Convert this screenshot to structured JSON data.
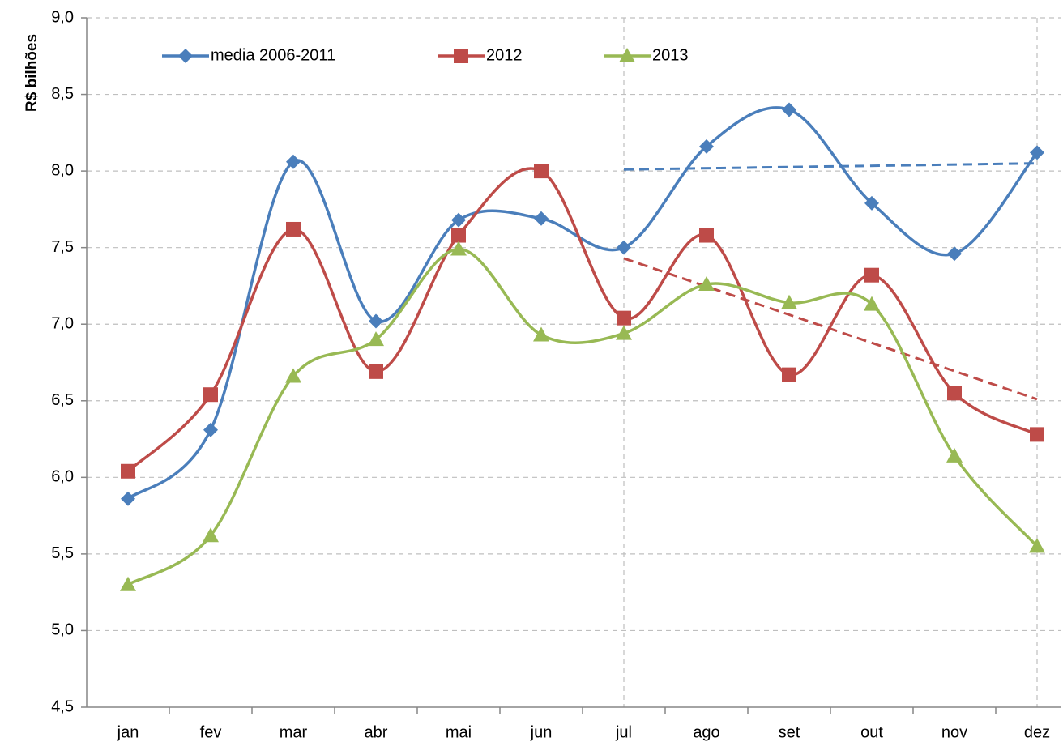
{
  "chart_data": {
    "type": "line",
    "y_label": "R$ bilhões",
    "categories": [
      "jan",
      "fev",
      "mar",
      "abr",
      "mai",
      "jun",
      "jul",
      "ago",
      "set",
      "out",
      "nov",
      "dez"
    ],
    "series": [
      {
        "name": "media 2006-2011",
        "color": "#4a7ebb",
        "marker": "diamond",
        "values": [
          5.86,
          6.31,
          8.06,
          7.02,
          7.68,
          7.69,
          7.5,
          8.16,
          8.4,
          7.79,
          7.46,
          8.12
        ]
      },
      {
        "name": "2012",
        "color": "#be4b48",
        "marker": "square",
        "values": [
          6.04,
          6.54,
          7.62,
          6.69,
          7.58,
          8.0,
          7.04,
          7.58,
          6.67,
          7.32,
          6.55,
          6.28
        ]
      },
      {
        "name": "2013",
        "color": "#98b954",
        "marker": "triangle",
        "values": [
          5.3,
          5.62,
          6.66,
          6.9,
          7.49,
          6.93,
          6.94,
          7.26,
          7.14,
          7.13,
          6.14,
          5.55
        ]
      }
    ],
    "trendlines": [
      {
        "color": "#4a7ebb",
        "from": "jul",
        "to": "dez",
        "values": [
          8.01,
          8.05
        ]
      },
      {
        "color": "#be4b48",
        "from": "jul",
        "to": "dez",
        "values": [
          7.43,
          6.51
        ]
      }
    ],
    "ylim": [
      4.5,
      9
    ],
    "yticks": [
      {
        "value": 4.5,
        "label": "4,5"
      },
      {
        "value": 5,
        "label": "5,0"
      },
      {
        "value": 5.5,
        "label": "5,5"
      },
      {
        "value": 6,
        "label": "6,0"
      },
      {
        "value": 6.5,
        "label": "6,5"
      },
      {
        "value": 7,
        "label": "7,0"
      },
      {
        "value": 7.5,
        "label": "7,5"
      },
      {
        "value": 8,
        "label": "8,0"
      },
      {
        "value": 8.5,
        "label": "8,5"
      },
      {
        "value": 9,
        "label": "9,0"
      }
    ],
    "grid": true,
    "legend": "top"
  }
}
